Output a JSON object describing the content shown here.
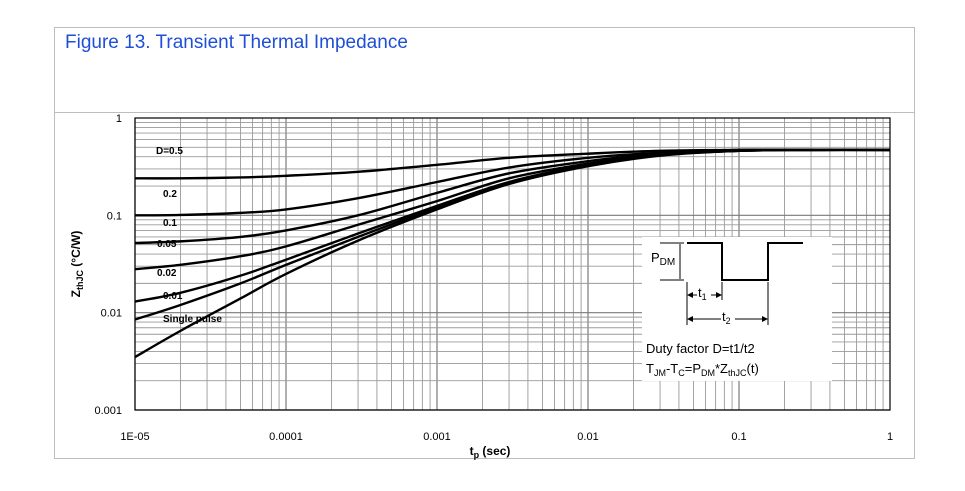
{
  "chart_data": {
    "type": "line",
    "title": "Figure 13. Transient Thermal Impedance",
    "xlabel": "t",
    "xlabel_sub": "p",
    "xlabel_unit": " (sec)",
    "ylabel": "Z",
    "ylabel_sub": "thJC",
    "ylabel_unit": " (°C/W)",
    "xscale": "log",
    "yscale": "log",
    "xlim": [
      1e-05,
      1
    ],
    "ylim": [
      0.001,
      1
    ],
    "xticks": [
      "1E-05",
      "0.0001",
      "0.001",
      "0.01",
      "0.1",
      "1"
    ],
    "yticks": [
      "0.001",
      "0.01",
      "0.1",
      "1"
    ],
    "grid": true,
    "series": [
      {
        "name": "D=0.5",
        "x": [
          1e-05,
          2e-05,
          5e-05,
          0.0001,
          0.0003,
          0.001,
          0.003,
          0.01,
          0.03,
          0.1,
          0.3,
          1
        ],
        "values": [
          0.24,
          0.24,
          0.245,
          0.255,
          0.28,
          0.33,
          0.39,
          0.43,
          0.46,
          0.47,
          0.47,
          0.47
        ]
      },
      {
        "name": "0.2",
        "x": [
          1e-05,
          2e-05,
          5e-05,
          0.0001,
          0.0003,
          0.001,
          0.003,
          0.01,
          0.03,
          0.1,
          0.3,
          1
        ],
        "values": [
          0.1,
          0.101,
          0.106,
          0.115,
          0.15,
          0.22,
          0.31,
          0.39,
          0.44,
          0.47,
          0.47,
          0.47
        ]
      },
      {
        "name": "0.1",
        "x": [
          1e-05,
          2e-05,
          5e-05,
          0.0001,
          0.0003,
          0.001,
          0.003,
          0.01,
          0.03,
          0.1,
          0.3,
          1
        ],
        "values": [
          0.052,
          0.054,
          0.06,
          0.07,
          0.1,
          0.17,
          0.27,
          0.36,
          0.43,
          0.47,
          0.47,
          0.47
        ]
      },
      {
        "name": "0.05",
        "x": [
          1e-05,
          2e-05,
          5e-05,
          0.0001,
          0.0003,
          0.001,
          0.003,
          0.01,
          0.03,
          0.1,
          0.3,
          1
        ],
        "values": [
          0.028,
          0.031,
          0.038,
          0.048,
          0.08,
          0.14,
          0.24,
          0.34,
          0.42,
          0.46,
          0.47,
          0.47
        ]
      },
      {
        "name": "0.02",
        "x": [
          1e-05,
          2e-05,
          5e-05,
          0.0001,
          0.0003,
          0.001,
          0.003,
          0.01,
          0.03,
          0.1,
          0.3,
          1
        ],
        "values": [
          0.013,
          0.016,
          0.024,
          0.035,
          0.065,
          0.125,
          0.22,
          0.33,
          0.42,
          0.46,
          0.47,
          0.47
        ]
      },
      {
        "name": "0.01",
        "x": [
          1e-05,
          2e-05,
          5e-05,
          0.0001,
          0.0003,
          0.001,
          0.003,
          0.01,
          0.03,
          0.1,
          0.3,
          1
        ],
        "values": [
          0.0085,
          0.012,
          0.02,
          0.031,
          0.06,
          0.12,
          0.215,
          0.325,
          0.415,
          0.46,
          0.47,
          0.47
        ]
      },
      {
        "name": "Single pulse",
        "x": [
          1e-05,
          2e-05,
          5e-05,
          0.0001,
          0.0003,
          0.001,
          0.003,
          0.01,
          0.03,
          0.1,
          0.3,
          1
        ],
        "values": [
          0.0035,
          0.0065,
          0.014,
          0.025,
          0.055,
          0.115,
          0.21,
          0.32,
          0.41,
          0.46,
          0.47,
          0.47
        ]
      }
    ],
    "inset": {
      "pdm_label": "P",
      "pdm_sub": "DM",
      "t1_label": "t",
      "t1_sub": "1",
      "t2_label": "t",
      "t2_sub": "2",
      "duty_text": "Duty factor D=t1/t2",
      "eq_t": "T",
      "eq_t_sub": "JM",
      "eq_mid": "-T",
      "eq_c_sub": "C",
      "eq_eq": "=P",
      "eq_pdm_sub": "DM",
      "eq_z": "*Z",
      "eq_z_sub": "thJC",
      "eq_tail": "(t)"
    }
  }
}
